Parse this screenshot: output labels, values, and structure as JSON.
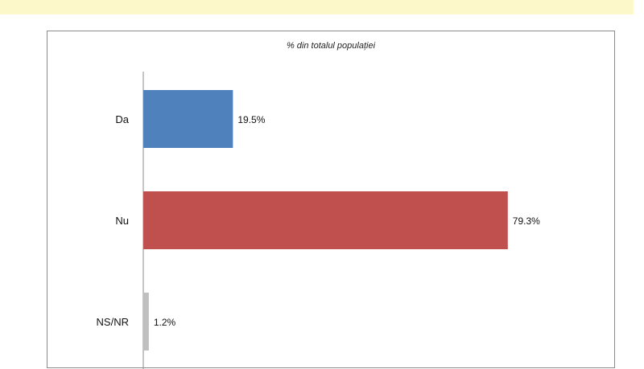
{
  "colors": {
    "top_strip": "#fdf8c9",
    "series": [
      "#4f81bd",
      "#c0504d",
      "#bfbfbf"
    ]
  },
  "chart_data": {
    "type": "bar",
    "orientation": "horizontal",
    "title": "% din totalul populației",
    "categories": [
      "Da",
      "Nu",
      "NS/NR"
    ],
    "values": [
      19.5,
      79.3,
      1.2
    ],
    "value_labels": [
      "19.5%",
      "79.3%",
      "1.2%"
    ],
    "xlim": [
      0,
      100
    ],
    "grid": false,
    "legend": "none"
  }
}
